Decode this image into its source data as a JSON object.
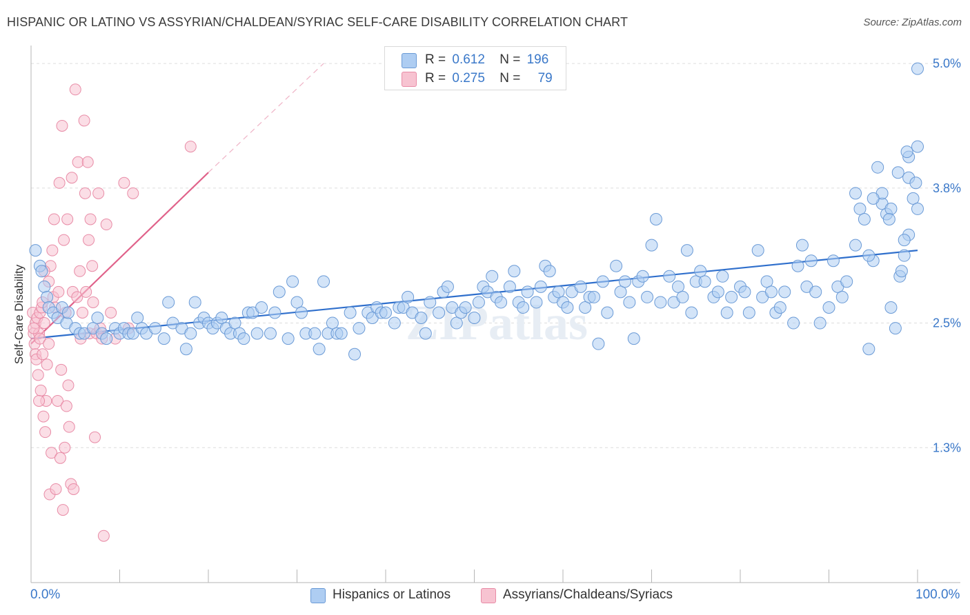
{
  "title": "HISPANIC OR LATINO VS ASSYRIAN/CHALDEAN/SYRIAC SELF-CARE DISABILITY CORRELATION CHART",
  "source": "Source: ZipAtlas.com",
  "watermark": "ZIPatlas",
  "legend_top": {
    "rows": [
      {
        "r_label": "R =",
        "r_value": "0.612",
        "n_label": "N =",
        "n_value": "196"
      },
      {
        "r_label": "R =",
        "r_value": "0.275",
        "n_label": "N =",
        "n_value": "79"
      }
    ]
  },
  "legend_bottom": {
    "items": [
      "Hispanics or Latinos",
      "Assyrians/Chaldeans/Syriacs"
    ]
  },
  "colors": {
    "blue_fill": "#aecdf2",
    "blue_stroke": "#6a9ad6",
    "blue_line": "#2f6fcc",
    "pink_fill": "#f7c3d1",
    "pink_stroke": "#e88ba6",
    "pink_line": "#e0628a",
    "axis_text": "#3a78c9",
    "grid": "#dddddd"
  },
  "chart_data": {
    "type": "scatter",
    "title": "HISPANIC OR LATINO VS ASSYRIAN/CHALDEAN/SYRIAC SELF-CARE DISABILITY CORRELATION CHART",
    "xlabel": "",
    "ylabel": "Self-Care Disability",
    "xlim": [
      0,
      100
    ],
    "ylim": [
      0,
      5.2
    ],
    "x_tick_labels": [
      "0.0%",
      "100.0%"
    ],
    "y_ticks": [
      1.3,
      2.5,
      3.8,
      5.0
    ],
    "y_tick_labels": [
      "1.3%",
      "2.5%",
      "3.8%",
      "5.0%"
    ],
    "grid": true,
    "legend_position": "top-center",
    "series": [
      {
        "name": "Hispanics or Latinos",
        "color": "#aecdf2",
        "r": 0.612,
        "n": 196,
        "trend": {
          "x": [
            0,
            100
          ],
          "y": [
            2.35,
            3.2
          ]
        },
        "points": [
          [
            0.5,
            3.2
          ],
          [
            1.0,
            3.05
          ],
          [
            1.2,
            3.0
          ],
          [
            1.5,
            2.85
          ],
          [
            1.8,
            2.75
          ],
          [
            2.0,
            2.65
          ],
          [
            2.5,
            2.6
          ],
          [
            3.0,
            2.55
          ],
          [
            3.5,
            2.65
          ],
          [
            4.0,
            2.5
          ],
          [
            4.2,
            2.6
          ],
          [
            5.0,
            2.45
          ],
          [
            5.5,
            2.4
          ],
          [
            6.0,
            2.4
          ],
          [
            7.0,
            2.45
          ],
          [
            7.5,
            2.55
          ],
          [
            8.0,
            2.4
          ],
          [
            8.5,
            2.35
          ],
          [
            9.5,
            2.45
          ],
          [
            10.0,
            2.4
          ],
          [
            10.5,
            2.45
          ],
          [
            11.0,
            2.4
          ],
          [
            11.5,
            2.4
          ],
          [
            12.0,
            2.55
          ],
          [
            12.5,
            2.45
          ],
          [
            13.0,
            2.4
          ],
          [
            14.0,
            2.45
          ],
          [
            15.0,
            2.35
          ],
          [
            15.5,
            2.7
          ],
          [
            16.0,
            2.5
          ],
          [
            17.0,
            2.45
          ],
          [
            17.5,
            2.25
          ],
          [
            18.0,
            2.4
          ],
          [
            18.5,
            2.7
          ],
          [
            19.0,
            2.5
          ],
          [
            19.5,
            2.55
          ],
          [
            20.0,
            2.5
          ],
          [
            20.5,
            2.45
          ],
          [
            21.0,
            2.5
          ],
          [
            21.5,
            2.55
          ],
          [
            22.0,
            2.45
          ],
          [
            22.5,
            2.4
          ],
          [
            23.0,
            2.5
          ],
          [
            23.5,
            2.4
          ],
          [
            24.0,
            2.35
          ],
          [
            24.5,
            2.6
          ],
          [
            25.0,
            2.6
          ],
          [
            25.5,
            2.4
          ],
          [
            26.0,
            2.65
          ],
          [
            27.0,
            2.4
          ],
          [
            27.5,
            2.6
          ],
          [
            28.0,
            2.8
          ],
          [
            29.0,
            2.35
          ],
          [
            29.5,
            2.9
          ],
          [
            30.0,
            2.7
          ],
          [
            30.5,
            2.6
          ],
          [
            31.0,
            2.4
          ],
          [
            32.0,
            2.4
          ],
          [
            32.5,
            2.25
          ],
          [
            33.0,
            2.9
          ],
          [
            33.5,
            2.4
          ],
          [
            34.0,
            2.5
          ],
          [
            34.5,
            2.4
          ],
          [
            35.0,
            2.4
          ],
          [
            36.0,
            2.6
          ],
          [
            36.5,
            2.2
          ],
          [
            37.0,
            2.45
          ],
          [
            38.0,
            2.6
          ],
          [
            38.5,
            2.55
          ],
          [
            39.0,
            2.65
          ],
          [
            39.5,
            2.6
          ],
          [
            40.0,
            2.6
          ],
          [
            41.0,
            2.5
          ],
          [
            41.5,
            2.65
          ],
          [
            42.0,
            2.65
          ],
          [
            42.5,
            2.75
          ],
          [
            43.0,
            2.6
          ],
          [
            44.0,
            2.55
          ],
          [
            44.5,
            2.4
          ],
          [
            45.0,
            2.7
          ],
          [
            46.0,
            2.6
          ],
          [
            46.5,
            2.8
          ],
          [
            47.0,
            2.85
          ],
          [
            47.5,
            2.65
          ],
          [
            48.0,
            2.5
          ],
          [
            48.5,
            2.6
          ],
          [
            49.0,
            2.65
          ],
          [
            50.0,
            2.55
          ],
          [
            50.5,
            2.7
          ],
          [
            51.0,
            2.85
          ],
          [
            51.5,
            2.8
          ],
          [
            52.0,
            2.95
          ],
          [
            52.5,
            2.75
          ],
          [
            53.0,
            2.7
          ],
          [
            54.0,
            2.85
          ],
          [
            54.5,
            3.0
          ],
          [
            55.0,
            2.7
          ],
          [
            55.5,
            2.65
          ],
          [
            56.0,
            2.8
          ],
          [
            57.0,
            2.7
          ],
          [
            57.5,
            2.85
          ],
          [
            58.0,
            3.05
          ],
          [
            58.5,
            3.0
          ],
          [
            59.0,
            2.75
          ],
          [
            59.5,
            2.8
          ],
          [
            60.0,
            2.7
          ],
          [
            60.5,
            2.65
          ],
          [
            61.0,
            2.8
          ],
          [
            62.0,
            2.85
          ],
          [
            62.5,
            2.65
          ],
          [
            63.0,
            2.75
          ],
          [
            63.5,
            2.75
          ],
          [
            64.0,
            2.3
          ],
          [
            64.5,
            2.9
          ],
          [
            65.0,
            2.6
          ],
          [
            66.0,
            3.05
          ],
          [
            66.5,
            2.8
          ],
          [
            67.0,
            2.9
          ],
          [
            67.5,
            2.7
          ],
          [
            68.0,
            2.35
          ],
          [
            68.5,
            2.9
          ],
          [
            69.0,
            2.95
          ],
          [
            69.5,
            2.75
          ],
          [
            70.0,
            3.25
          ],
          [
            70.5,
            3.5
          ],
          [
            71.0,
            2.7
          ],
          [
            72.0,
            2.95
          ],
          [
            72.5,
            2.7
          ],
          [
            73.0,
            2.85
          ],
          [
            73.5,
            2.75
          ],
          [
            74.0,
            3.2
          ],
          [
            74.5,
            2.6
          ],
          [
            75.0,
            2.9
          ],
          [
            75.5,
            3.0
          ],
          [
            76.0,
            2.9
          ],
          [
            77.0,
            2.75
          ],
          [
            77.5,
            2.8
          ],
          [
            78.0,
            2.95
          ],
          [
            78.5,
            2.6
          ],
          [
            79.0,
            2.75
          ],
          [
            80.0,
            2.85
          ],
          [
            80.5,
            2.8
          ],
          [
            81.0,
            2.6
          ],
          [
            82.0,
            3.2
          ],
          [
            82.5,
            2.75
          ],
          [
            83.0,
            2.9
          ],
          [
            83.5,
            2.8
          ],
          [
            84.0,
            2.6
          ],
          [
            84.5,
            2.65
          ],
          [
            85.0,
            2.8
          ],
          [
            86.0,
            2.5
          ],
          [
            86.5,
            3.05
          ],
          [
            87.0,
            3.25
          ],
          [
            87.5,
            2.85
          ],
          [
            88.0,
            3.1
          ],
          [
            88.5,
            2.8
          ],
          [
            89.0,
            2.5
          ],
          [
            90.0,
            2.65
          ],
          [
            90.5,
            3.1
          ],
          [
            91.0,
            2.85
          ],
          [
            91.5,
            2.75
          ],
          [
            92.0,
            2.9
          ],
          [
            93.0,
            3.25
          ],
          [
            93.5,
            3.6
          ],
          [
            94.0,
            3.5
          ],
          [
            94.5,
            2.25
          ],
          [
            95.0,
            3.1
          ],
          [
            95.5,
            4.0
          ],
          [
            96.0,
            3.65
          ],
          [
            96.5,
            3.55
          ],
          [
            97.0,
            2.65
          ],
          [
            97.5,
            2.45
          ],
          [
            98.0,
            2.95
          ],
          [
            98.5,
            3.15
          ],
          [
            99.0,
            3.35
          ],
          [
            99.5,
            3.7
          ],
          [
            100.0,
            3.6
          ],
          [
            97.0,
            3.6
          ],
          [
            98.2,
            3.0
          ],
          [
            99.0,
            3.9
          ],
          [
            100.0,
            4.95
          ],
          [
            98.5,
            3.3
          ],
          [
            96.0,
            3.75
          ],
          [
            95.0,
            3.7
          ],
          [
            93.0,
            3.75
          ],
          [
            97.8,
            3.95
          ],
          [
            99.8,
            3.85
          ],
          [
            99.0,
            4.1
          ],
          [
            98.8,
            4.15
          ],
          [
            100.0,
            4.2
          ],
          [
            96.8,
            3.5
          ],
          [
            94.5,
            3.15
          ]
        ]
      },
      {
        "name": "Assyrians/Chaldeans/Syriacs",
        "color": "#f7c3d1",
        "r": 0.275,
        "n": 79,
        "trend": {
          "x": [
            0,
            20
          ],
          "y": [
            2.3,
            3.95
          ]
        },
        "trend_extension": {
          "x": [
            20,
            33
          ],
          "y": [
            3.95,
            5.0
          ]
        },
        "points": [
          [
            0.2,
            2.6
          ],
          [
            0.3,
            2.4
          ],
          [
            0.4,
            2.3
          ],
          [
            0.5,
            2.2
          ],
          [
            0.5,
            2.5
          ],
          [
            0.6,
            2.15
          ],
          [
            0.7,
            2.55
          ],
          [
            0.8,
            2.0
          ],
          [
            0.9,
            2.4
          ],
          [
            1.0,
            2.35
          ],
          [
            1.0,
            2.6
          ],
          [
            1.1,
            1.85
          ],
          [
            1.2,
            2.65
          ],
          [
            1.3,
            2.2
          ],
          [
            1.4,
            1.6
          ],
          [
            1.5,
            2.5
          ],
          [
            1.6,
            1.45
          ],
          [
            1.7,
            1.75
          ],
          [
            1.8,
            2.1
          ],
          [
            2.0,
            2.3
          ],
          [
            2.0,
            2.9
          ],
          [
            2.1,
            0.85
          ],
          [
            2.2,
            3.05
          ],
          [
            2.3,
            1.25
          ],
          [
            2.5,
            2.75
          ],
          [
            2.6,
            3.5
          ],
          [
            2.7,
            2.65
          ],
          [
            2.8,
            0.9
          ],
          [
            3.0,
            1.75
          ],
          [
            3.1,
            2.8
          ],
          [
            3.2,
            3.85
          ],
          [
            3.3,
            1.2
          ],
          [
            3.4,
            2.05
          ],
          [
            3.5,
            4.4
          ],
          [
            3.6,
            0.7
          ],
          [
            3.7,
            3.3
          ],
          [
            3.8,
            1.3
          ],
          [
            3.9,
            2.6
          ],
          [
            4.0,
            1.7
          ],
          [
            4.1,
            3.5
          ],
          [
            4.2,
            1.9
          ],
          [
            4.3,
            1.5
          ],
          [
            4.5,
            0.95
          ],
          [
            4.6,
            3.9
          ],
          [
            4.7,
            2.8
          ],
          [
            4.8,
            0.9
          ],
          [
            5.0,
            4.75
          ],
          [
            5.2,
            2.75
          ],
          [
            5.3,
            4.05
          ],
          [
            5.5,
            3.0
          ],
          [
            5.6,
            2.35
          ],
          [
            5.8,
            2.6
          ],
          [
            6.0,
            4.45
          ],
          [
            6.1,
            3.75
          ],
          [
            6.2,
            2.8
          ],
          [
            6.4,
            4.05
          ],
          [
            6.5,
            3.3
          ],
          [
            6.6,
            2.4
          ],
          [
            6.7,
            3.5
          ],
          [
            6.9,
            3.05
          ],
          [
            7.0,
            2.7
          ],
          [
            7.2,
            1.4
          ],
          [
            7.4,
            2.4
          ],
          [
            7.6,
            3.75
          ],
          [
            7.8,
            2.45
          ],
          [
            8.0,
            2.35
          ],
          [
            8.2,
            0.45
          ],
          [
            8.5,
            3.45
          ],
          [
            9.0,
            2.6
          ],
          [
            9.5,
            2.35
          ],
          [
            10.5,
            3.85
          ],
          [
            11.0,
            2.45
          ],
          [
            11.5,
            3.75
          ],
          [
            18.0,
            4.2
          ],
          [
            1.5,
            3.0
          ],
          [
            2.4,
            3.2
          ],
          [
            0.9,
            1.75
          ],
          [
            1.3,
            2.7
          ],
          [
            0.3,
            2.45
          ]
        ]
      }
    ]
  }
}
